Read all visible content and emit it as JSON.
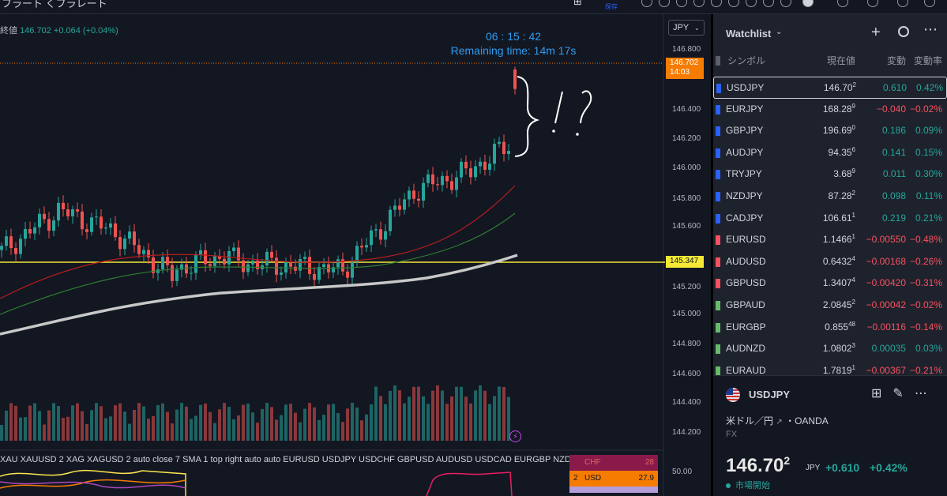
{
  "topbar": {
    "left_text": "フラート    くフラレート",
    "save_label": "保存"
  },
  "chart": {
    "legend_label": "終値",
    "legend_value": "146.702",
    "legend_change": "+0.064 (+0.04%)",
    "countdown_time": "06 : 15 : 42",
    "remaining_label": "Remaining time: 14m 17s",
    "currency": "JPY",
    "current_price_tag": "146.702",
    "current_time_tag": "14:03",
    "horizontal_level_tag": "145.347",
    "price_axis": [
      "146.800",
      "146.400",
      "146.200",
      "146.000",
      "145.800",
      "145.600",
      "145.200",
      "145.000",
      "144.800",
      "144.600",
      "144.400",
      "144.200"
    ],
    "indicator_text": "XAU XAUUSD 2 XAG XAGUSD 2 auto close 7 SMA 1 top right auto auto EURUSD USDJPY USDCHF GBPUSD AUDUSD USDCAD EURGBP NZDU",
    "oscillator_axis_label": "50.00",
    "oscillator_table": [
      {
        "rank": "",
        "currency": "CHF",
        "value": "28"
      },
      {
        "rank": "2",
        "currency": "USD",
        "value": "27.9"
      }
    ],
    "annotation_text": "} !?",
    "colors": {
      "up": "#26a69a",
      "down": "#ef5350",
      "level": "#f5e936",
      "countdown": "#2f9cf0",
      "sma_long": "#c8c8c8"
    }
  },
  "watchlist": {
    "title": "Watchlist",
    "headers": {
      "symbol": "シンボル",
      "last": "現在値",
      "change": "変動",
      "change_pct": "変動率"
    },
    "rows": [
      {
        "symbol": "USDJPY",
        "last_main": "146.70",
        "last_sup": "2",
        "change": "0.610",
        "pct": "0.42%",
        "dir": "pos",
        "flag": "#2962ff",
        "selected": true
      },
      {
        "symbol": "EURJPY",
        "last_main": "168.28",
        "last_sup": "9",
        "change": "−0.040",
        "pct": "−0.02%",
        "dir": "neg",
        "flag": "#2962ff"
      },
      {
        "symbol": "GBPJPY",
        "last_main": "196.69",
        "last_sup": "0",
        "change": "0.186",
        "pct": "0.09%",
        "dir": "pos",
        "flag": "#2962ff"
      },
      {
        "symbol": "AUDJPY",
        "last_main": "94.35",
        "last_sup": "6",
        "change": "0.141",
        "pct": "0.15%",
        "dir": "pos",
        "flag": "#2962ff"
      },
      {
        "symbol": "TRYJPY",
        "last_main": "3.68",
        "last_sup": "9",
        "change": "0.011",
        "pct": "0.30%",
        "dir": "pos",
        "flag": "#2962ff"
      },
      {
        "symbol": "NZDJPY",
        "last_main": "87.28",
        "last_sup": "2",
        "change": "0.098",
        "pct": "0.11%",
        "dir": "pos",
        "flag": "#2962ff"
      },
      {
        "symbol": "CADJPY",
        "last_main": "106.61",
        "last_sup": "1",
        "change": "0.219",
        "pct": "0.21%",
        "dir": "pos",
        "flag": "#2962ff"
      },
      {
        "symbol": "EURUSD",
        "last_main": "1.1466",
        "last_sup": "1",
        "change": "−0.00550",
        "pct": "−0.48%",
        "dir": "neg",
        "flag": "#f7525f"
      },
      {
        "symbol": "AUDUSD",
        "last_main": "0.6432",
        "last_sup": "4",
        "change": "−0.00168",
        "pct": "−0.26%",
        "dir": "neg",
        "flag": "#f7525f"
      },
      {
        "symbol": "GBPUSD",
        "last_main": "1.3407",
        "last_sup": "4",
        "change": "−0.00420",
        "pct": "−0.31%",
        "dir": "neg",
        "flag": "#f7525f"
      },
      {
        "symbol": "GBPAUD",
        "last_main": "2.0845",
        "last_sup": "2",
        "change": "−0.00042",
        "pct": "−0.02%",
        "dir": "neg",
        "flag": "#66bb6a"
      },
      {
        "symbol": "EURGBP",
        "last_main": "0.855",
        "last_sup": "48",
        "change": "−0.00116",
        "pct": "−0.14%",
        "dir": "neg",
        "flag": "#66bb6a"
      },
      {
        "symbol": "AUDNZD",
        "last_main": "1.0802",
        "last_sup": "3",
        "change": "0.00035",
        "pct": "0.03%",
        "dir": "pos",
        "flag": "#66bb6a"
      },
      {
        "symbol": "EURAUD",
        "last_main": "1.7819",
        "last_sup": "1",
        "change": "−0.00367",
        "pct": "−0.21%",
        "dir": "neg",
        "flag": "#66bb6a"
      }
    ]
  },
  "details": {
    "symbol": "USDJPY",
    "name": "米ドル／円",
    "exchange": "・OANDA",
    "type": "FX",
    "price_main": "146.70",
    "price_sup": "2",
    "currency": "JPY",
    "change": "+0.610",
    "change_pct": "+0.42%",
    "status": "市場開始"
  }
}
